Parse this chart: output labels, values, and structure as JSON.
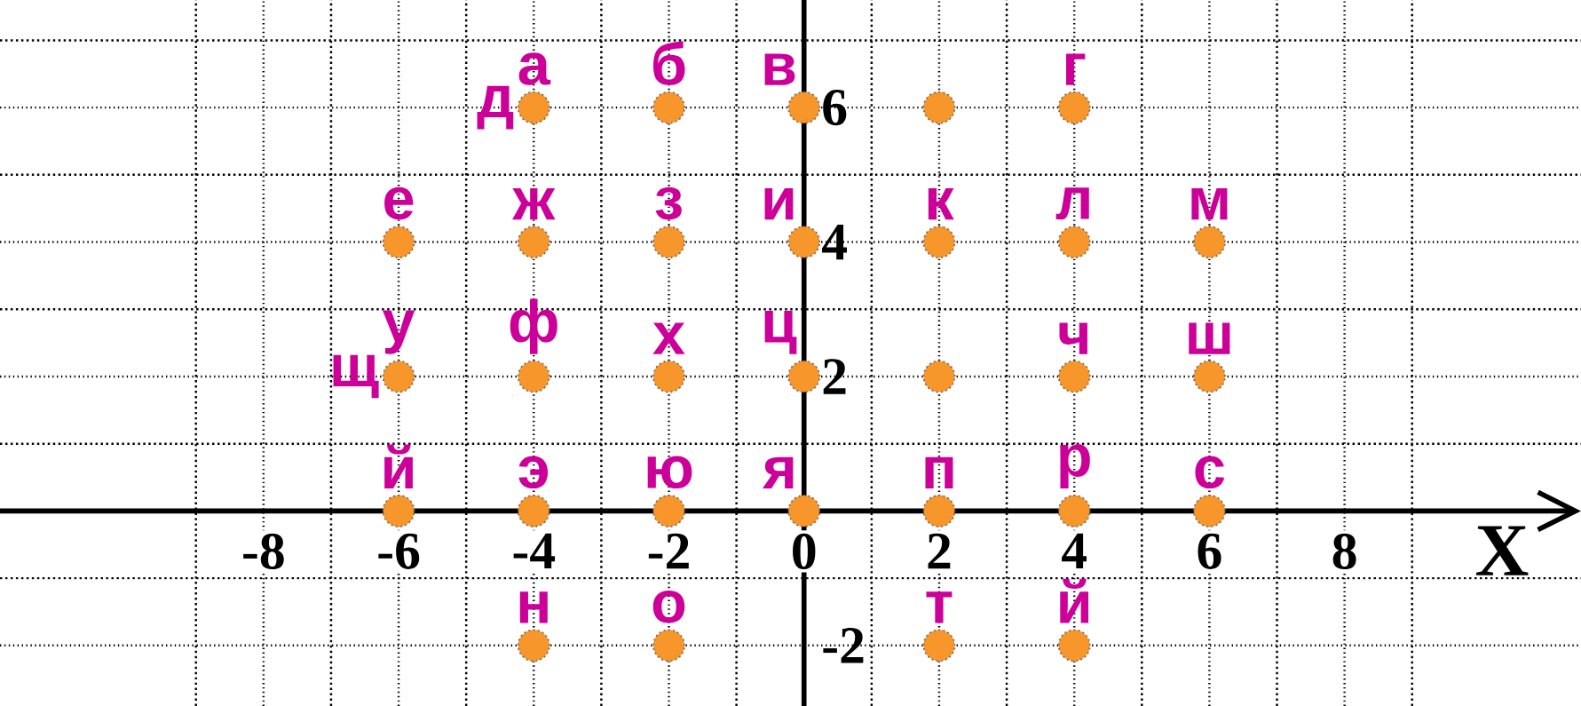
{
  "chart_data": {
    "type": "scatter",
    "xlabel": "X",
    "x": [
      -4,
      -2,
      0,
      2,
      4,
      -6,
      -4,
      -2,
      0,
      2,
      4,
      6,
      -6,
      -4,
      -2,
      0,
      2,
      4,
      6,
      -6,
      -4,
      -2,
      0,
      2,
      4,
      6,
      -4,
      -2,
      2,
      4
    ],
    "series": [
      {
        "color": "#f7962a",
        "values": [
          6,
          6,
          6,
          6,
          6,
          4,
          4,
          4,
          4,
          4,
          4,
          4,
          2,
          2,
          2,
          2,
          2,
          2,
          2,
          0,
          0,
          0,
          0,
          0,
          0,
          0,
          -2,
          -2,
          -2,
          -2
        ]
      }
    ],
    "marker": "circle",
    "xlim": [
      -11.9,
      11.5
    ],
    "ylim": [
      -2.9,
      7.6
    ],
    "xticks": [
      {
        "value": -9,
        "label": null
      },
      -8,
      {
        "value": -7,
        "label": null
      },
      -6,
      {
        "value": -5,
        "label": null
      },
      -4,
      {
        "value": -3,
        "label": null
      },
      -2,
      {
        "value": -1,
        "label": null
      },
      0,
      {
        "value": 1,
        "label": null
      },
      2,
      {
        "value": 3,
        "label": null
      },
      4,
      {
        "value": 5,
        "label": null
      },
      6,
      {
        "value": 7,
        "label": null
      },
      8,
      {
        "value": 9,
        "label": null
      }
    ],
    "yticks": [
      -2,
      {
        "value": -1,
        "label": null
      },
      {
        "value": 1,
        "label": null
      },
      2,
      {
        "value": 3,
        "label": null
      },
      4,
      {
        "value": 5,
        "label": null
      },
      6,
      {
        "value": 7,
        "label": null
      }
    ],
    "grid": true,
    "annotations": [
      {
        "text": "а",
        "x": -4,
        "y": 6
      },
      {
        "text": "б",
        "x": -2,
        "y": 6
      },
      {
        "text": "в",
        "x": 0,
        "y": 6
      },
      {
        "text": "г",
        "x": 4,
        "y": 6
      },
      {
        "text": "д",
        "x": -4,
        "y": 6
      },
      {
        "text": "е",
        "x": -6,
        "y": 4
      },
      {
        "text": "ж",
        "x": -4,
        "y": 4
      },
      {
        "text": "з",
        "x": -2,
        "y": 4
      },
      {
        "text": "и",
        "x": 0,
        "y": 4
      },
      {
        "text": "к",
        "x": 2,
        "y": 4
      },
      {
        "text": "л",
        "x": 4,
        "y": 4
      },
      {
        "text": "м",
        "x": 6,
        "y": 4
      },
      {
        "text": "у",
        "x": -6,
        "y": 2
      },
      {
        "text": "ф",
        "x": -4,
        "y": 2
      },
      {
        "text": "х",
        "x": -2,
        "y": 2
      },
      {
        "text": "ц",
        "x": 0,
        "y": 2
      },
      {
        "text": "ч",
        "x": 4,
        "y": 2
      },
      {
        "text": "ш",
        "x": 6,
        "y": 2
      },
      {
        "text": "щ",
        "x": -6,
        "y": 2
      },
      {
        "text": "й",
        "x": -6,
        "y": 0
      },
      {
        "text": "э",
        "x": -4,
        "y": 0
      },
      {
        "text": "ю",
        "x": -2,
        "y": 0
      },
      {
        "text": "я",
        "x": 0,
        "y": 0
      },
      {
        "text": "п",
        "x": 2,
        "y": 0
      },
      {
        "text": "р",
        "x": 4,
        "y": 0
      },
      {
        "text": "с",
        "x": 6,
        "y": 0
      },
      {
        "text": "н",
        "x": -4,
        "y": -2
      },
      {
        "text": "о",
        "x": -2,
        "y": -2
      },
      {
        "text": "т",
        "x": 2,
        "y": -2
      },
      {
        "text": "й",
        "x": 4,
        "y": -2
      }
    ]
  }
}
